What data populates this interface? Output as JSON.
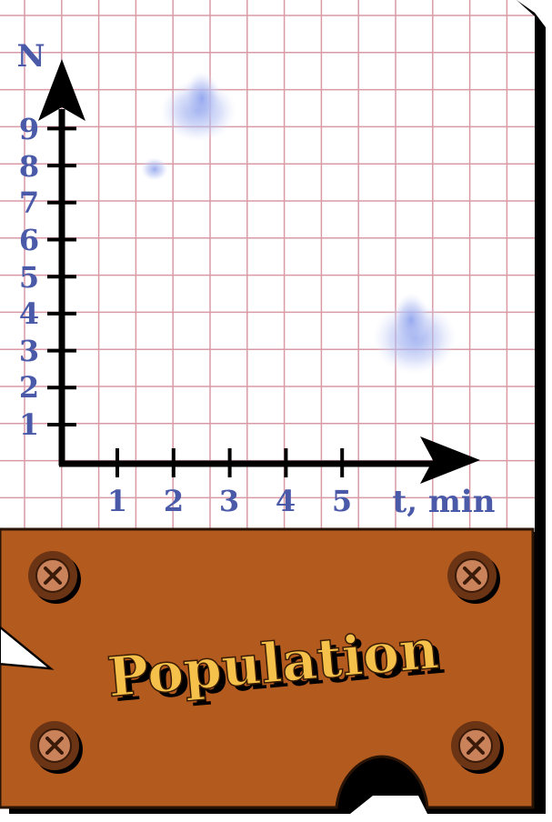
{
  "graph": {
    "y_axis_label": "N",
    "x_axis_label": "t, min",
    "y_ticks": [
      "1",
      "2",
      "3",
      "4",
      "5",
      "6",
      "7",
      "8",
      "9"
    ],
    "x_ticks": [
      "1",
      "2",
      "3",
      "4",
      "5"
    ]
  },
  "banner": {
    "title": "Population"
  },
  "colors": {
    "grid_line": "#d99aa5",
    "label": "#4a5aa8",
    "board": "#b35a1f",
    "title_fill": "#f5c14a",
    "screw": "#c9825a"
  }
}
